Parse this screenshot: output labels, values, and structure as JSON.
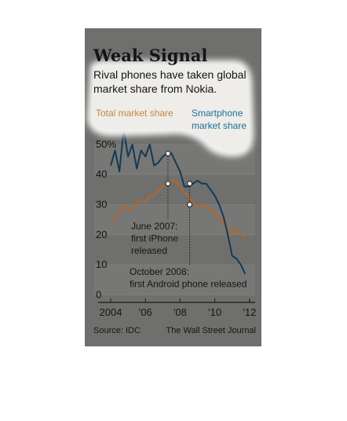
{
  "chart_data": {
    "type": "line",
    "title": "Weak Signal",
    "subtitle": "Rival phones have taken global market share from Nokia.",
    "x": [
      2004,
      2004.25,
      2004.5,
      2004.75,
      2005,
      2005.25,
      2005.5,
      2005.75,
      2006,
      2006.25,
      2006.5,
      2006.75,
      2007,
      2007.25,
      2007.5,
      2007.75,
      2008,
      2008.25,
      2008.5,
      2008.75,
      2009,
      2009.25,
      2009.5,
      2009.75,
      2010,
      2010.25,
      2010.5,
      2010.75,
      2011,
      2011.25,
      2011.5,
      2011.75
    ],
    "series": [
      {
        "name": "Total market share",
        "color": "#b5652c",
        "values": [
          25,
          25,
          27,
          30,
          28,
          29,
          31,
          31,
          31,
          33,
          33,
          35,
          36,
          37,
          38,
          38,
          36,
          34,
          33,
          30,
          30,
          30,
          29,
          28,
          28,
          26,
          24,
          22,
          20,
          22,
          20,
          19
        ]
      },
      {
        "name": "Smartphone market share",
        "color": "#123a57",
        "values": [
          43,
          48,
          41,
          55,
          46,
          50,
          42,
          48,
          46,
          50,
          43,
          44,
          46,
          47,
          47,
          44,
          41,
          36,
          36,
          37,
          38,
          37,
          37,
          35,
          33,
          30,
          26,
          20,
          13,
          12,
          10,
          7
        ]
      }
    ],
    "xlim": [
      2003.05,
      2012.55
    ],
    "xticks": [
      2004,
      {
        "value": 2006,
        "label": "'06"
      },
      {
        "value": 2008,
        "label": "'08"
      },
      {
        "value": 2010,
        "label": "'10"
      },
      {
        "value": 2012,
        "label": "'12"
      }
    ],
    "ylim": [
      -2,
      56
    ],
    "yticks": [
      0,
      10,
      20,
      30,
      40,
      {
        "value": 50,
        "label": "50%"
      }
    ],
    "grid": true,
    "annotations": [
      {
        "x": 2007.3,
        "index": 13,
        "text": [
          "June 2007:",
          "first iPhone",
          "released"
        ]
      },
      {
        "x": 2008.55,
        "index": 19,
        "text": [
          "October 2008:",
          "first Android phone released"
        ]
      }
    ],
    "source": "Source: IDC",
    "credit": "The Wall Street Journal"
  }
}
